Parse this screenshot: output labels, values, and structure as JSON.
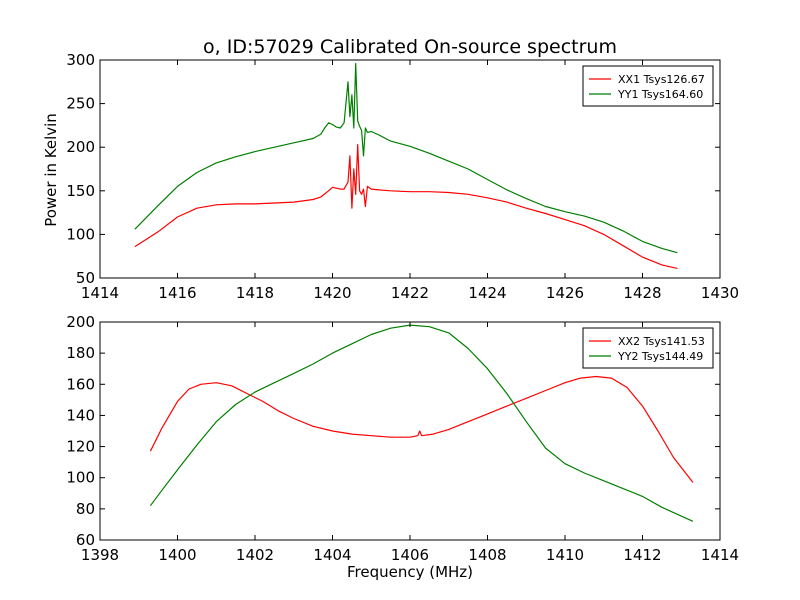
{
  "figure": {
    "title": "o, ID:57029 Calibrated On-source spectrum",
    "xlabel": "Frequency (MHz)",
    "ylabel_top": "Power in Kelvin"
  },
  "colors": {
    "red": "#ff0000",
    "green": "#007f00"
  },
  "chart_data": [
    {
      "type": "line",
      "title": "o, ID:57029 Calibrated On-source spectrum",
      "xlabel": "",
      "ylabel": "Power in Kelvin",
      "xlim": [
        1414,
        1430
      ],
      "ylim": [
        50,
        300
      ],
      "xticks": [
        1414,
        1416,
        1418,
        1420,
        1422,
        1424,
        1426,
        1428,
        1430
      ],
      "yticks": [
        50,
        100,
        150,
        200,
        250,
        300
      ],
      "grid": false,
      "legend": "top-right",
      "series": [
        {
          "name": "XX1 Tsys126.67",
          "color": "#ff0000",
          "x": [
            1414.9,
            1415.5,
            1416.0,
            1416.5,
            1417.0,
            1417.5,
            1418.0,
            1418.5,
            1419.0,
            1419.5,
            1419.7,
            1419.9,
            1420.0,
            1420.1,
            1420.2,
            1420.3,
            1420.4,
            1420.45,
            1420.5,
            1420.55,
            1420.6,
            1420.65,
            1420.7,
            1420.75,
            1420.8,
            1420.85,
            1420.9,
            1421.0,
            1421.2,
            1421.5,
            1422.0,
            1422.5,
            1423.0,
            1423.5,
            1424.0,
            1424.5,
            1425.0,
            1425.5,
            1426.0,
            1426.5,
            1427.0,
            1427.5,
            1428.0,
            1428.5,
            1428.9
          ],
          "y": [
            86,
            103,
            120,
            130,
            134,
            135,
            135,
            136,
            137,
            140,
            143,
            150,
            154,
            153,
            152,
            152,
            160,
            190,
            130,
            175,
            146,
            203,
            150,
            146,
            152,
            132,
            155,
            152,
            151,
            150,
            149,
            149,
            148,
            146,
            142,
            137,
            130,
            124,
            117,
            110,
            100,
            87,
            74,
            65,
            61
          ]
        },
        {
          "name": "YY1 Tsys164.60",
          "color": "#007f00",
          "x": [
            1414.9,
            1415.5,
            1416.0,
            1416.5,
            1417.0,
            1417.5,
            1418.0,
            1418.5,
            1419.0,
            1419.5,
            1419.7,
            1419.8,
            1419.9,
            1420.0,
            1420.1,
            1420.2,
            1420.3,
            1420.4,
            1420.45,
            1420.5,
            1420.55,
            1420.6,
            1420.65,
            1420.7,
            1420.75,
            1420.8,
            1420.85,
            1420.9,
            1421.0,
            1421.2,
            1421.5,
            1422.0,
            1422.5,
            1423.0,
            1423.5,
            1424.0,
            1424.5,
            1425.0,
            1425.5,
            1426.0,
            1426.5,
            1427.0,
            1427.5,
            1428.0,
            1428.5,
            1428.9
          ],
          "y": [
            106,
            133,
            155,
            171,
            182,
            189,
            195,
            200,
            205,
            210,
            215,
            222,
            228,
            226,
            223,
            222,
            228,
            275,
            235,
            260,
            222,
            296,
            230,
            224,
            219,
            190,
            222,
            217,
            218,
            214,
            207,
            201,
            193,
            184,
            175,
            163,
            151,
            141,
            132,
            126,
            121,
            114,
            104,
            92,
            84,
            79
          ]
        }
      ]
    },
    {
      "type": "line",
      "title": "",
      "xlabel": "Frequency (MHz)",
      "ylabel": "",
      "xlim": [
        1398,
        1414
      ],
      "ylim": [
        60,
        200
      ],
      "xticks": [
        1398,
        1400,
        1402,
        1404,
        1406,
        1408,
        1410,
        1412,
        1414
      ],
      "yticks": [
        60,
        80,
        100,
        120,
        140,
        160,
        180,
        200
      ],
      "grid": false,
      "legend": "top-right",
      "series": [
        {
          "name": "XX2 Tsys141.53",
          "color": "#ff0000",
          "x": [
            1399.3,
            1399.6,
            1400.0,
            1400.3,
            1400.6,
            1401.0,
            1401.4,
            1401.8,
            1402.2,
            1402.6,
            1403.0,
            1403.5,
            1404.0,
            1404.5,
            1405.0,
            1405.5,
            1406.0,
            1406.2,
            1406.25,
            1406.3,
            1406.6,
            1407.0,
            1407.5,
            1408.0,
            1408.5,
            1409.0,
            1409.5,
            1410.0,
            1410.4,
            1410.8,
            1411.2,
            1411.6,
            1412.0,
            1412.4,
            1412.8,
            1413.3
          ],
          "y": [
            117,
            132,
            149,
            157,
            160,
            161,
            159,
            154,
            149,
            143,
            138,
            133,
            130,
            128,
            127,
            126,
            126,
            127,
            130,
            127,
            128,
            131,
            136,
            141,
            146,
            151,
            156,
            161,
            164,
            165,
            164,
            158,
            146,
            130,
            113,
            97
          ]
        },
        {
          "name": "YY2 Tsys144.49",
          "color": "#007f00",
          "x": [
            1399.3,
            1399.6,
            1400.0,
            1400.5,
            1401.0,
            1401.5,
            1402.0,
            1402.5,
            1403.0,
            1403.5,
            1404.0,
            1404.5,
            1405.0,
            1405.5,
            1406.0,
            1406.5,
            1407.0,
            1407.5,
            1408.0,
            1408.5,
            1409.0,
            1409.5,
            1410.0,
            1410.5,
            1411.0,
            1411.5,
            1412.0,
            1412.5,
            1413.3
          ],
          "y": [
            82,
            92,
            105,
            121,
            136,
            147,
            155,
            161,
            167,
            173,
            180,
            186,
            192,
            196,
            198,
            197,
            193,
            183,
            170,
            154,
            136,
            119,
            109,
            103,
            98,
            93,
            88,
            81,
            72
          ]
        }
      ]
    }
  ]
}
